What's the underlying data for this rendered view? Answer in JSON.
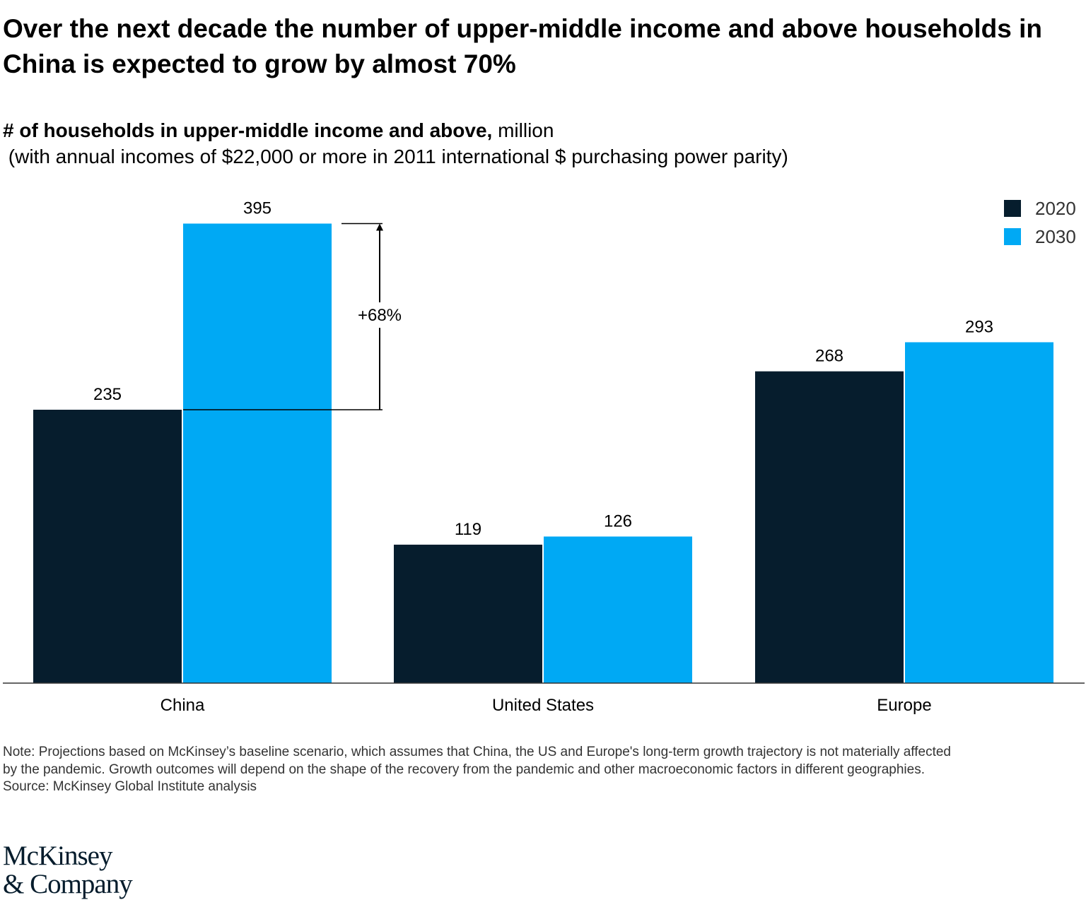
{
  "title": "Over the next decade the number of upper-middle income and above households in China is expected to grow by almost 70%",
  "subtitle": {
    "bold": "# of households in upper-middle income and above,",
    "unit": " million",
    "line2": " (with annual incomes of $22,000 or more in 2011 international $ purchasing power parity)"
  },
  "chart_data": {
    "type": "bar",
    "categories": [
      "China",
      "United States",
      "Europe"
    ],
    "series": [
      {
        "name": "2020",
        "values": [
          235,
          119,
          268
        ],
        "color": "#061d2d"
      },
      {
        "name": "2030",
        "values": [
          395,
          126,
          293
        ],
        "color": "#00a9f4"
      }
    ],
    "ylim": [
      0,
      395
    ],
    "grid": false,
    "legend": "top-right",
    "annotation": {
      "label": "+68%",
      "from": 235,
      "to": 395,
      "category": "China"
    }
  },
  "note": [
    "Note: Projections based on McKinsey’s baseline scenario, which assumes that China, the US and Europe's long-term growth trajectory is not materially affected",
    "by the pandemic. Growth outcomes will depend on the shape of the recovery from the pandemic and other macroeconomic factors in different geographies.",
    "Source: McKinsey Global Institute analysis"
  ],
  "logo": [
    "McKinsey",
    "& Company"
  ]
}
